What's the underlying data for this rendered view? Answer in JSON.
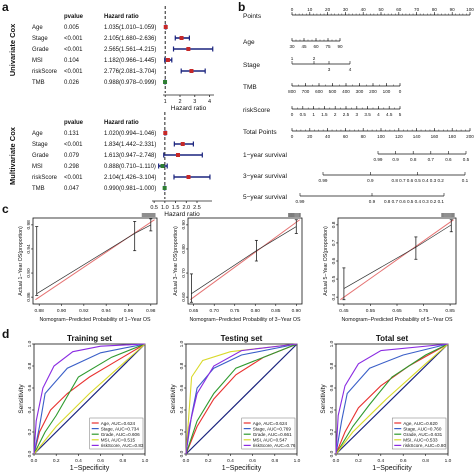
{
  "panels": {
    "a": "a",
    "b": "b",
    "c": "c",
    "d": "d"
  },
  "forest": {
    "univariate": {
      "side_label": "Univariate Cox",
      "col_pvalue": "pvalue",
      "col_hr": "Hazard ratio",
      "axis_label": "Hazard ratio",
      "ticks": [
        "1",
        "2",
        "3",
        "4"
      ],
      "rows": [
        {
          "name": "Age",
          "p": "0.005",
          "hr_text": "1.035(1.010–1.059)",
          "hr": 1.035,
          "lo": 1.01,
          "hi": 1.059
        },
        {
          "name": "Stage",
          "p": "<0.001",
          "hr_text": "2.105(1.680–2.636)",
          "hr": 2.105,
          "lo": 1.68,
          "hi": 2.636
        },
        {
          "name": "Grade",
          "p": "<0.001",
          "hr_text": "2.565(1.561–4.215)",
          "hr": 2.565,
          "lo": 1.561,
          "hi": 4.215
        },
        {
          "name": "MSI",
          "p": "0.104",
          "hr_text": "1.182(0.966–1.445)",
          "hr": 1.182,
          "lo": 0.966,
          "hi": 1.445
        },
        {
          "name": "riskScore",
          "p": "<0.001",
          "hr_text": "2.776(2.081–3.704)",
          "hr": 2.776,
          "lo": 2.081,
          "hi": 3.704
        },
        {
          "name": "TMB",
          "p": "0.026",
          "hr_text": "0.988(0.978–0.999)",
          "hr": 0.988,
          "lo": 0.978,
          "hi": 0.999
        }
      ]
    },
    "multivariate": {
      "side_label": "Multivariate Cox",
      "col_pvalue": "pvalue",
      "col_hr": "Hazard ratio",
      "axis_label": "Hazard ratio",
      "ticks": [
        "0.5",
        "1.0",
        "1.5",
        "2.0",
        "2.5"
      ],
      "rows": [
        {
          "name": "Age",
          "p": "0.131",
          "hr_text": "1.020(0.994–1.046)",
          "hr": 1.02,
          "lo": 0.994,
          "hi": 1.046
        },
        {
          "name": "Stage",
          "p": "<0.001",
          "hr_text": "1.834(1.442–2.331)",
          "hr": 1.834,
          "lo": 1.442,
          "hi": 2.331
        },
        {
          "name": "Grade",
          "p": "0.079",
          "hr_text": "1.613(0.947–2.748)",
          "hr": 1.613,
          "lo": 0.947,
          "hi": 2.748
        },
        {
          "name": "MSI",
          "p": "0.298",
          "hr_text": "0.888(0.710–1.110)",
          "hr": 0.888,
          "lo": 0.71,
          "hi": 1.11
        },
        {
          "name": "riskScore",
          "p": "<0.001",
          "hr_text": "2.104(1.426–3.104)",
          "hr": 2.104,
          "lo": 1.426,
          "hi": 3.104
        },
        {
          "name": "TMB",
          "p": "0.047",
          "hr_text": "0.990(0.981–1.000)",
          "hr": 0.99,
          "lo": 0.981,
          "hi": 1.0
        }
      ]
    }
  },
  "nomogram": {
    "rows": [
      "Points",
      "Age",
      "Stage",
      "TMB",
      "riskScore",
      "Total Points",
      "1−year survival",
      "3−year survival",
      "5−year survival"
    ],
    "points_ticks": [
      "0",
      "10",
      "20",
      "30",
      "40",
      "50",
      "60",
      "70",
      "80",
      "90",
      "100"
    ],
    "age_ticks": [
      "30",
      "45",
      "60",
      "75",
      "90"
    ],
    "stage_ticks": [
      "2",
      "4",
      "1",
      "3"
    ],
    "tmb_ticks": [
      "800",
      "700",
      "600",
      "500",
      "400",
      "300",
      "200",
      "100",
      "0"
    ],
    "risk_ticks": [
      "0",
      "0.5",
      "1",
      "1.5",
      "2",
      "2.5",
      "3",
      "3.5",
      "4",
      "4.5",
      "5"
    ],
    "total_ticks": [
      "0",
      "20",
      "40",
      "60",
      "80",
      "100",
      "120",
      "140",
      "160",
      "180",
      "200"
    ],
    "surv1_ticks": [
      "0.99",
      "0.9",
      "0.8",
      "0.7",
      "0.6",
      "0.5"
    ],
    "surv3_ticks": [
      "0.99",
      "0.9",
      "0.8 0.7 0.6 0.5 0.4 0.3 0.2",
      "0.1"
    ],
    "surv5_ticks": [
      "0.99",
      "0.9",
      "0.8 0.7 0.6 0.5 0.4 0.3 0.2 0.1"
    ]
  },
  "calibration": [
    {
      "ylabel": "Actual 1−Year OS(proportion)",
      "xlabel": "Nomogram−Predicted Probability of 1−Year OS",
      "xticks": [
        "0.88",
        "0.90",
        "0.92",
        "0.94",
        "0.96",
        "0.98"
      ],
      "yticks": [
        "0.86",
        "0.90",
        "0.94",
        "0.98"
      ]
    },
    {
      "ylabel": "Actual 3−Year OS(proportion)",
      "xlabel": "Nomogram−Predicted Probability of 3−Year OS",
      "xticks": [
        "0.65",
        "0.70",
        "0.75",
        "0.80",
        "0.85",
        "0.90"
      ],
      "yticks": [
        "0.60",
        "0.70",
        "0.80",
        "0.90"
      ]
    },
    {
      "ylabel": "Actual 5−Year OS(proportion)",
      "xlabel": "Nomogram−Predicted Probability of 5−Year OS",
      "xticks": [
        "0.45",
        "0.55",
        "0.65",
        "0.75",
        "0.85"
      ],
      "yticks": [
        "0.4",
        "0.5",
        "0.6",
        "0.7",
        "0.8"
      ]
    }
  ],
  "roc": {
    "xlabel": "1−Specificity",
    "ylabel": "Sensitivity",
    "ticks": [
      "0.0",
      "0.2",
      "0.4",
      "0.6",
      "0.8",
      "1.0"
    ],
    "colors": {
      "Age": "#e8312f",
      "Stage": "#3a5fc8",
      "Grade": "#2e9a2e",
      "MSI": "#d9d92a",
      "riskScore": "#8a2be2"
    },
    "panels": [
      {
        "title": "Training set",
        "legend": [
          "Age, AUC=0.624",
          "Stage, AUC=0.734",
          "Grade, AUC=0.606",
          "MSI, AUC=0.515",
          "riskScore, AUC=0.83"
        ]
      },
      {
        "title": "Testing set",
        "legend": [
          "Age, AUC=0.624",
          "Stage, AUC=0.769",
          "Grade, AUC=0.661",
          "MSI, AUC=0.547",
          "riskScore, AUC=0.76"
        ]
      },
      {
        "title": "Total set",
        "legend": [
          "Age, AUC=0.620",
          "Stage, AUC=0.760",
          "Grade, AUC=0.631",
          "MSI, AUC=0.533",
          "riskScore, AUC=0.80"
        ]
      }
    ]
  }
}
